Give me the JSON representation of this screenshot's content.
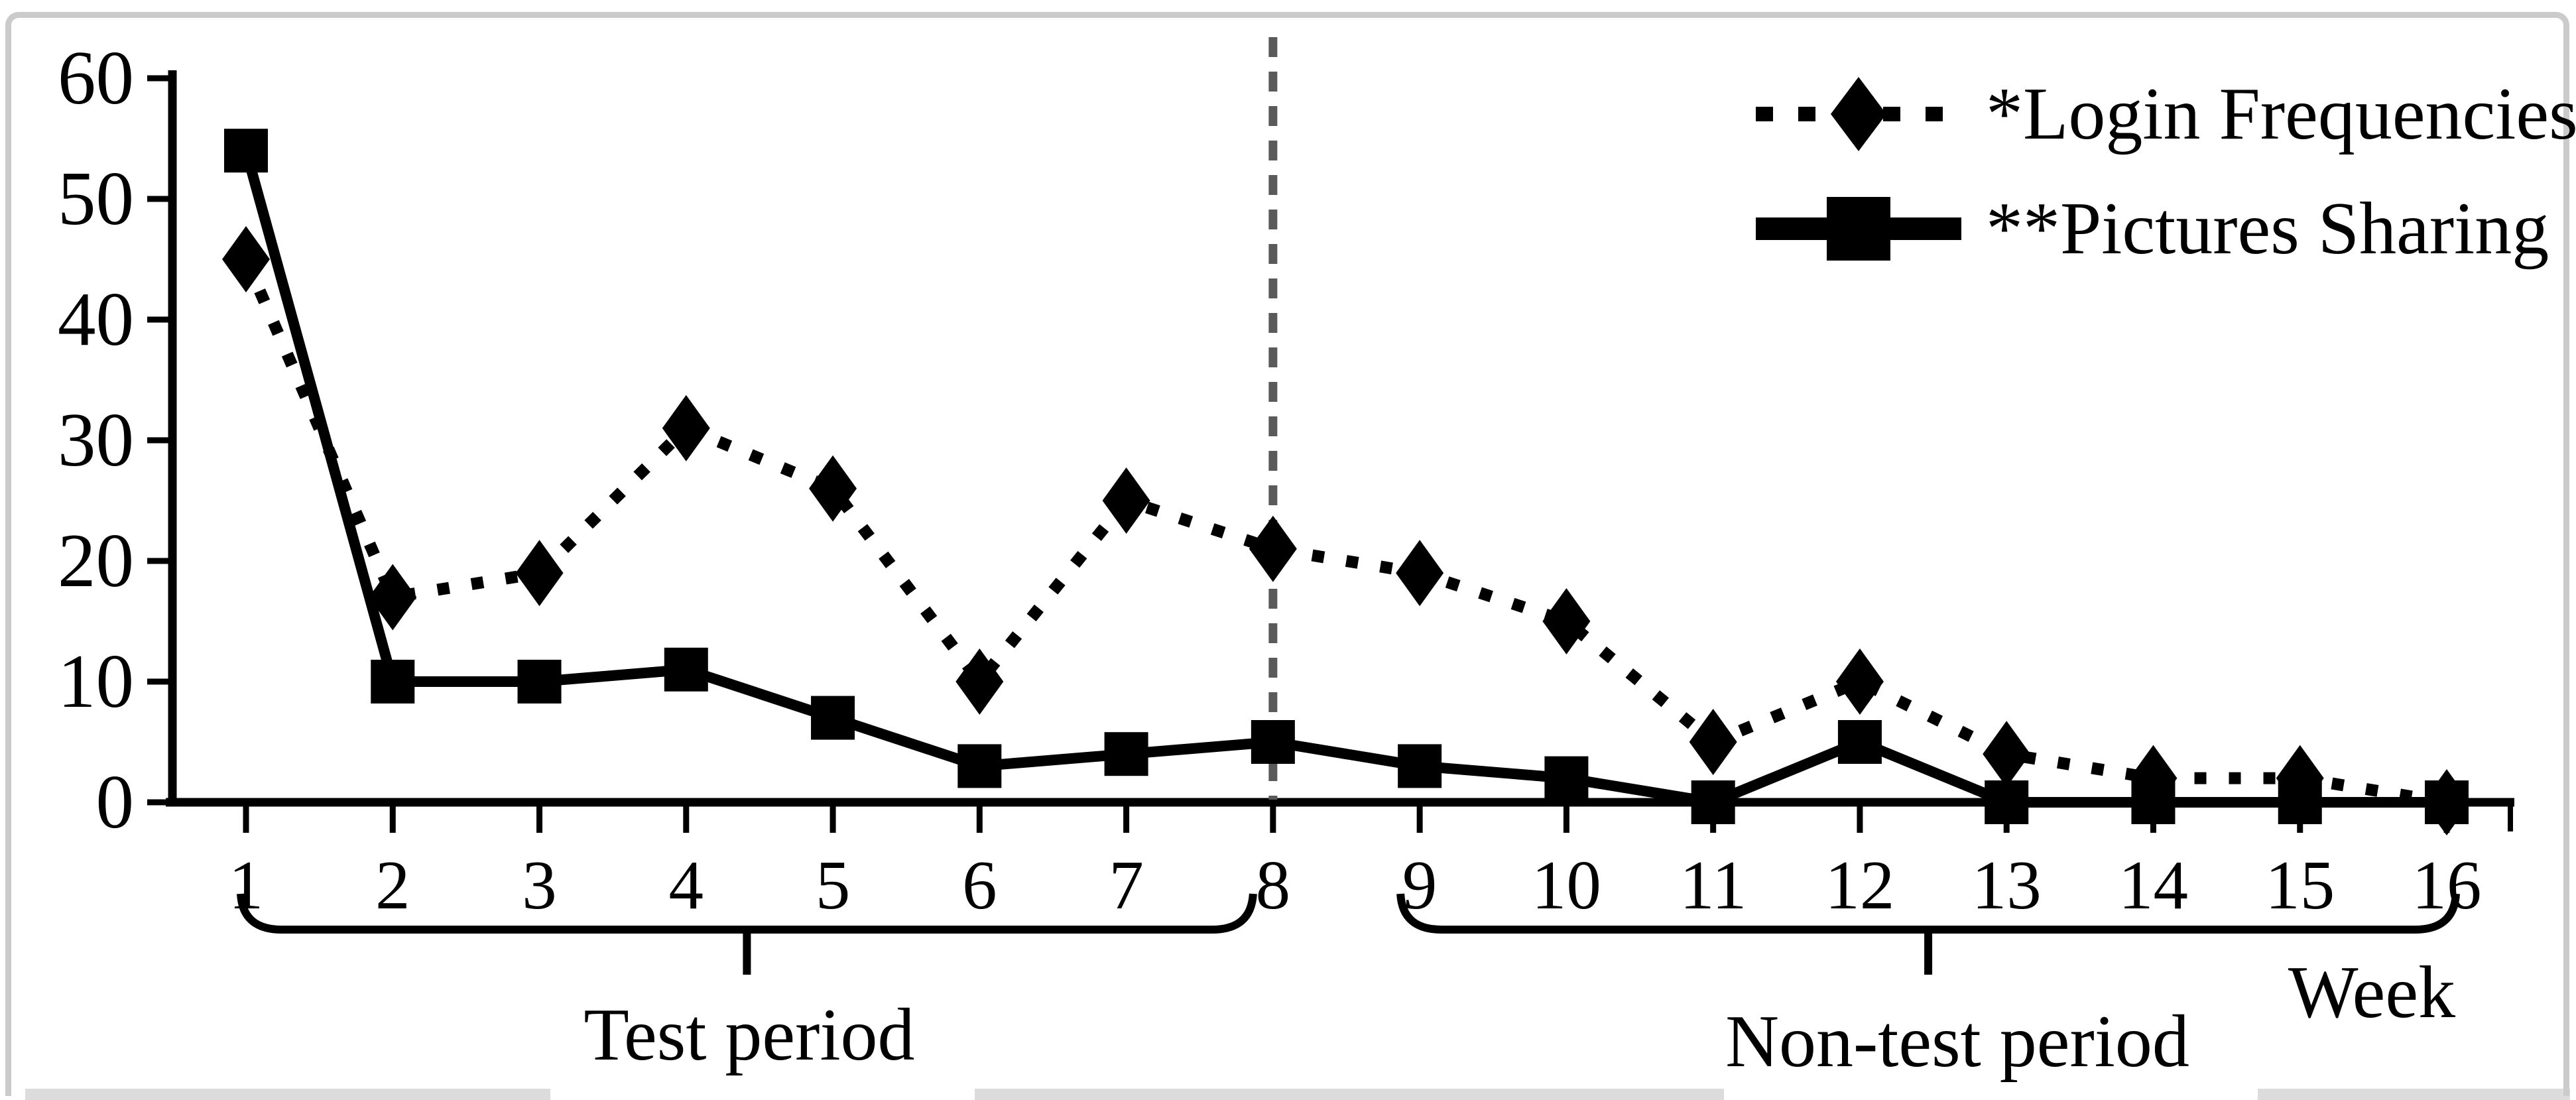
{
  "chart_data": {
    "type": "line",
    "title": "",
    "xlabel": "Week",
    "ylabel": "",
    "ylim": [
      0,
      60
    ],
    "yticks": [
      0,
      10,
      20,
      30,
      40,
      50,
      60
    ],
    "x": [
      1,
      2,
      3,
      4,
      5,
      6,
      7,
      8,
      9,
      10,
      11,
      12,
      13,
      14,
      15,
      16
    ],
    "series": [
      {
        "name": "*Login Frequencies",
        "marker": "diamond",
        "line_style": "dotted",
        "color": "#000000",
        "values": [
          45,
          17,
          19,
          31,
          26,
          10,
          25,
          21,
          19,
          15,
          5,
          10,
          4,
          2,
          2,
          0
        ]
      },
      {
        "name": "**Pictures Sharing",
        "marker": "square",
        "line_style": "solid",
        "color": "#000000",
        "values": [
          54,
          10,
          10,
          11,
          7,
          3,
          4,
          5,
          3,
          2,
          0,
          5,
          0,
          0,
          0,
          0
        ]
      }
    ],
    "legend_position": "top-right",
    "grid": false,
    "annotations": {
      "divider_at_week": 8,
      "periods": [
        {
          "label": "Test period",
          "from": 1,
          "to": 8
        },
        {
          "label": "Non-test period",
          "from": 9,
          "to": 16
        }
      ]
    }
  },
  "colors": {
    "series": "#000000",
    "divider": "#5a5a5a",
    "frame": "#cbcbcb",
    "bottom_bars": "#dcdcdc",
    "text": "#000000"
  }
}
